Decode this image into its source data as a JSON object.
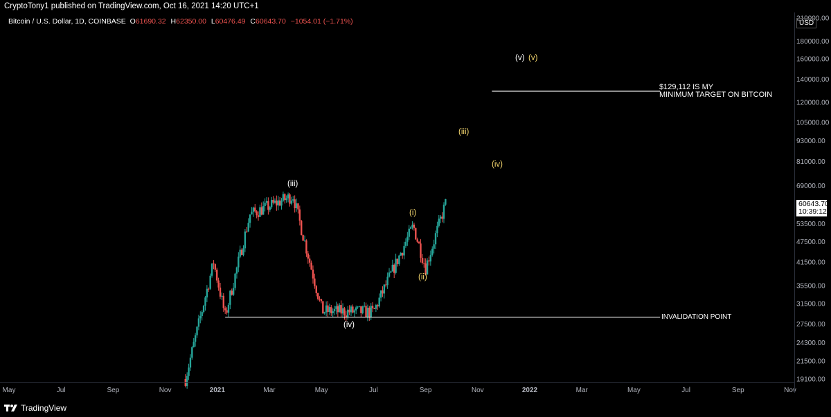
{
  "header": {
    "publish_line": "CryptoTony1 published on TradingView.com, Oct 16, 2021 14:20 UTC+1"
  },
  "symbol": {
    "name": "Bitcoin / U.S. Dollar, 1D, COINBASE",
    "o_label": "O",
    "o_value": "61690.32",
    "h_label": "H",
    "h_value": "62350.00",
    "l_label": "L",
    "l_value": "60476.49",
    "c_label": "C",
    "c_value": "60643.70",
    "change": "−1054.01 (−1.71%)"
  },
  "price_axis": {
    "currency": "USD",
    "ticks": [
      "210000.00",
      "180000.00",
      "160000.00",
      "140000.00",
      "120000.00",
      "105000.00",
      "93000.00",
      "81000.00",
      "69000.00",
      "53500.00",
      "47500.00",
      "41500.00",
      "35500.00",
      "31500.00",
      "27500.00",
      "24300.00",
      "21500.00",
      "19100.00"
    ],
    "last_price": "60643.70",
    "countdown": "10:39:12"
  },
  "time_axis": {
    "ticks": [
      "May",
      "Jul",
      "Sep",
      "Nov",
      "2021",
      "Mar",
      "May",
      "Jul",
      "Sep",
      "Nov",
      "2022",
      "Mar",
      "May",
      "Jul",
      "Sep",
      "Nov"
    ]
  },
  "annotations": {
    "wave_iii_past": "(iii)",
    "wave_iv_past": "(iv)",
    "wave_i": "(i)",
    "wave_ii": "(ii)",
    "wave_iii_proj": "(iii)",
    "wave_iv_proj": "(iv)",
    "wave_v_white": "(v)",
    "wave_v_yellow": "(v)",
    "target_line1": "$129,112 IS MY",
    "target_line2": "MINIMUM TARGET ON BITCOIN",
    "invalidation": "INVALIDATION POINT"
  },
  "colors": {
    "background": "#000000",
    "up_candle": "#26a69a",
    "down_candle": "#ef5350",
    "wave_yellow": "#f5d76e",
    "text": "#ffffff"
  },
  "footer": {
    "brand": "TradingView"
  },
  "chart_data": {
    "type": "candlestick",
    "symbol": "Bitcoin / U.S. Dollar, 1D, COINBASE",
    "y_scale": "log",
    "ylim": [
      19100,
      210000
    ],
    "xlim": [
      "2020-05-01",
      "2022-11-30"
    ],
    "key_points": [
      {
        "date": "2020-12-05",
        "price": 19100
      },
      {
        "date": "2021-01-08",
        "price": 41500
      },
      {
        "date": "2021-01-22",
        "price": 29000
      },
      {
        "date": "2021-02-21",
        "price": 57000
      },
      {
        "date": "2021-04-14",
        "price": 64500
      },
      {
        "date": "2021-05-19",
        "price": 30000
      },
      {
        "date": "2021-07-20",
        "price": 29800
      },
      {
        "date": "2021-09-06",
        "price": 52800
      },
      {
        "date": "2021-09-21",
        "price": 40000
      },
      {
        "date": "2021-10-16",
        "price": 62350
      }
    ],
    "lines": [
      {
        "label": "INVALIDATION POINT",
        "price": 28800,
        "from": "2021-01-22",
        "to": "2022-07-01"
      },
      {
        "label": "$129,112 IS MY MINIMUM TARGET ON BITCOIN",
        "price": 129112,
        "from": "2021-12-10",
        "to": "2022-07-01"
      }
    ]
  }
}
